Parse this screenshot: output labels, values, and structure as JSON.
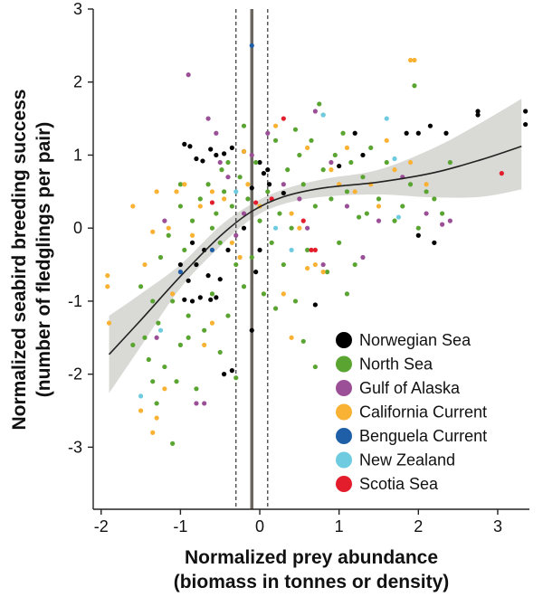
{
  "chart_data": {
    "type": "scatter",
    "xlabel": [
      "Normalized prey abundance",
      "(biomass in tonnes or density)"
    ],
    "ylabel": [
      "Normalized seabird breeding success",
      "(number of fledglings per pair)"
    ],
    "xlim": [
      -2.1,
      3.4
    ],
    "ylim": [
      -3.85,
      3
    ],
    "x_ticks": [
      -2,
      -1,
      0,
      1,
      2,
      3
    ],
    "x_tick_labels": [
      "-2",
      "-1",
      "0",
      "1",
      "2",
      "3"
    ],
    "y_ticks": [
      -3,
      -2,
      -1,
      0,
      1,
      2,
      3
    ],
    "y_tick_labels": [
      "-3",
      "-2",
      "-1",
      "0",
      "1",
      "2",
      "3"
    ],
    "threshold_line": -0.1,
    "threshold_ci": [
      -0.3,
      0.1
    ],
    "legend": {
      "placement": "bottom-right",
      "entries": [
        {
          "label": "Norwegian Sea",
          "color": "#000000"
        },
        {
          "label": "North Sea",
          "color": "#5aa532"
        },
        {
          "label": "Gulf of Alaska",
          "color": "#9b4f96"
        },
        {
          "label": "California Current",
          "color": "#f9b233"
        },
        {
          "label": "Benguela Current",
          "color": "#1f5fa8"
        },
        {
          "label": "New Zealand",
          "color": "#6ecbe0"
        },
        {
          "label": "Scotia Sea",
          "color": "#e31d2b"
        }
      ]
    },
    "fit": {
      "x": [
        -1.9,
        -1.5,
        -1.0,
        -0.5,
        -0.1,
        0.3,
        0.8,
        1.5,
        2.2,
        2.8,
        3.3
      ],
      "y": [
        -1.73,
        -1.26,
        -0.66,
        -0.11,
        0.23,
        0.43,
        0.55,
        0.63,
        0.76,
        0.94,
        1.12
      ],
      "ci_upper": [
        -1.2,
        -0.9,
        -0.5,
        0.03,
        0.33,
        0.53,
        0.67,
        0.8,
        1.1,
        1.45,
        1.77
      ],
      "ci_lower": [
        -2.26,
        -1.62,
        -0.82,
        -0.25,
        0.13,
        0.33,
        0.43,
        0.46,
        0.42,
        0.43,
        0.53
      ]
    },
    "fit_color": "#222222",
    "ci_color": "#d9d9d6",
    "series": [
      {
        "name": "Norwegian Sea",
        "color": "#000000",
        "points": [
          [
            -0.95,
            1.15
          ],
          [
            -0.88,
            1.12
          ],
          [
            -0.8,
            0.95
          ],
          [
            -0.72,
            0.92
          ],
          [
            -0.62,
            1.08
          ],
          [
            -0.55,
            1.0
          ],
          [
            -0.45,
            1.02
          ],
          [
            -0.35,
            1.1
          ],
          [
            -0.2,
            1.05
          ],
          [
            0.0,
            0.9
          ],
          [
            0.05,
            0.75
          ],
          [
            0.1,
            0.8
          ],
          [
            -0.1,
            0.55
          ],
          [
            0.12,
            0.6
          ],
          [
            0.3,
            0.48
          ],
          [
            -0.95,
            -0.98
          ],
          [
            -0.85,
            -1.0
          ],
          [
            -0.75,
            -0.95
          ],
          [
            -0.62,
            -0.98
          ],
          [
            -0.55,
            -0.95
          ],
          [
            -0.5,
            -0.7
          ],
          [
            -0.65,
            -0.65
          ],
          [
            -0.8,
            -0.5
          ],
          [
            -0.9,
            -0.72
          ],
          [
            -1.0,
            -0.5
          ],
          [
            -0.85,
            -0.2
          ],
          [
            -0.7,
            -0.3
          ],
          [
            -0.4,
            -0.3
          ],
          [
            -0.2,
            0.0
          ],
          [
            0.0,
            -0.3
          ],
          [
            -0.05,
            -0.6
          ],
          [
            -0.35,
            -1.95
          ],
          [
            -0.45,
            -2.0
          ],
          [
            -0.1,
            -1.4
          ],
          [
            0.7,
            -1.05
          ],
          [
            1.0,
            0.85
          ],
          [
            1.2,
            1.3
          ],
          [
            1.3,
            1.0
          ],
          [
            2.0,
            1.3
          ],
          [
            2.15,
            1.4
          ],
          [
            2.35,
            1.3
          ],
          [
            2.75,
            1.55
          ],
          [
            2.75,
            1.6
          ],
          [
            3.35,
            1.6
          ],
          [
            3.35,
            1.42
          ],
          [
            2.0,
            -0.1
          ],
          [
            2.2,
            -0.2
          ],
          [
            1.85,
            1.3
          ]
        ]
      },
      {
        "name": "North Sea",
        "color": "#5aa532",
        "points": [
          [
            -1.5,
            -0.8
          ],
          [
            -1.45,
            -1.5
          ],
          [
            -1.4,
            -1.8
          ],
          [
            -1.35,
            -2.1
          ],
          [
            -1.3,
            -2.4
          ],
          [
            -1.28,
            -1.3
          ],
          [
            -1.25,
            -0.4
          ],
          [
            -1.2,
            -1.9
          ],
          [
            -1.15,
            -0.1
          ],
          [
            -1.1,
            -2.95
          ],
          [
            -1.1,
            -1.0
          ],
          [
            -1.05,
            -2.1
          ],
          [
            -1.0,
            0.3
          ],
          [
            -1.0,
            -1.6
          ],
          [
            -0.95,
            -0.3
          ],
          [
            -0.9,
            -1.2
          ],
          [
            -0.85,
            0.1
          ],
          [
            -0.8,
            -2.2
          ],
          [
            -0.75,
            0.4
          ],
          [
            -0.7,
            -1.4
          ],
          [
            -0.65,
            0.6
          ],
          [
            -0.6,
            -0.9
          ],
          [
            -0.55,
            0.2
          ],
          [
            -0.5,
            -1.7
          ],
          [
            -0.48,
            0.8
          ],
          [
            -0.45,
            0.5
          ],
          [
            -0.4,
            -1.2
          ],
          [
            -0.35,
            0.3
          ],
          [
            -0.3,
            -0.5
          ],
          [
            -0.25,
            0.7
          ],
          [
            -0.2,
            -0.8
          ],
          [
            -0.15,
            0.4
          ],
          [
            -0.1,
            -0.4
          ],
          [
            -0.05,
            0.9
          ],
          [
            0.0,
            0.1
          ],
          [
            0.05,
            -0.9
          ],
          [
            0.1,
            0.5
          ],
          [
            0.15,
            -0.2
          ],
          [
            0.2,
            1.2
          ],
          [
            0.25,
            0.2
          ],
          [
            0.3,
            -0.5
          ],
          [
            0.35,
            0.8
          ],
          [
            0.4,
            0.0
          ],
          [
            0.45,
            -1.0
          ],
          [
            0.5,
            1.0
          ],
          [
            0.55,
            0.6
          ],
          [
            0.6,
            -0.3
          ],
          [
            0.65,
            1.2
          ],
          [
            0.7,
            0.3
          ],
          [
            0.75,
            1.7
          ],
          [
            0.8,
            0.8
          ],
          [
            0.85,
            -0.6
          ],
          [
            0.9,
            0.4
          ],
          [
            0.95,
            1.0
          ],
          [
            1.0,
            -0.2
          ],
          [
            1.05,
            1.3
          ],
          [
            1.1,
            0.5
          ],
          [
            1.15,
            0.9
          ],
          [
            1.2,
            -0.5
          ],
          [
            1.3,
            0.7
          ],
          [
            1.35,
            0.2
          ],
          [
            1.4,
            1.1
          ],
          [
            1.5,
            0.4
          ],
          [
            1.6,
            0.9
          ],
          [
            1.7,
            0.1
          ],
          [
            1.8,
            0.3
          ],
          [
            1.9,
            0.6
          ],
          [
            2.0,
            0.0
          ],
          [
            2.1,
            0.5
          ],
          [
            2.2,
            0.4
          ],
          [
            2.3,
            0.2
          ],
          [
            2.4,
            0.9
          ],
          [
            1.95,
            1.95
          ],
          [
            -1.6,
            -1.6
          ],
          [
            -0.3,
            -2.05
          ],
          [
            0.55,
            -1.55
          ],
          [
            0.7,
            -1.9
          ],
          [
            1.1,
            -0.9
          ],
          [
            -1.0,
            0.6
          ],
          [
            -0.6,
            0.0
          ],
          [
            0.0,
            0.3
          ],
          [
            0.2,
            -1.1
          ],
          [
            -0.2,
            1.4
          ],
          [
            0.45,
            1.35
          ],
          [
            0.8,
            1.55
          ],
          [
            1.25,
            0.15
          ],
          [
            -1.35,
            -1.0
          ],
          [
            -0.9,
            -1.5
          ],
          [
            -0.5,
            -0.2
          ],
          [
            -0.4,
            0.9
          ]
        ]
      },
      {
        "name": "Gulf of Alaska",
        "color": "#9b4f96",
        "points": [
          [
            -0.9,
            2.1
          ],
          [
            -0.8,
            -2.4
          ],
          [
            -0.7,
            -2.4
          ],
          [
            -0.65,
            1.5
          ],
          [
            -0.55,
            1.3
          ],
          [
            -0.5,
            0.9
          ],
          [
            -0.4,
            0.7
          ],
          [
            -0.3,
            -0.1
          ],
          [
            -0.2,
            0.2
          ],
          [
            -0.1,
            1.0
          ],
          [
            0.1,
            1.3
          ],
          [
            0.3,
            0.6
          ],
          [
            0.5,
            0.4
          ],
          [
            0.7,
            1.6
          ],
          [
            0.9,
            0.9
          ],
          [
            1.1,
            0.3
          ],
          [
            1.3,
            -0.4
          ],
          [
            1.5,
            0.1
          ],
          [
            1.8,
            0.7
          ],
          [
            2.1,
            0.2
          ],
          [
            2.3,
            0.05
          ],
          [
            2.4,
            0.1
          ],
          [
            -1.2,
            0.1
          ],
          [
            -1.3,
            -1.5
          ],
          [
            0.6,
            0.0
          ],
          [
            0.8,
            -0.5
          ]
        ]
      },
      {
        "name": "California Current",
        "color": "#f9b233",
        "points": [
          [
            -1.92,
            -0.65
          ],
          [
            -1.92,
            -0.8
          ],
          [
            -1.9,
            -1.3
          ],
          [
            -1.6,
            0.3
          ],
          [
            -1.5,
            -2.5
          ],
          [
            -1.45,
            -0.5
          ],
          [
            -1.35,
            -0.05
          ],
          [
            -1.3,
            0.5
          ],
          [
            -1.2,
            -2.2
          ],
          [
            -1.15,
            0.0
          ],
          [
            -1.1,
            -0.9
          ],
          [
            -1.05,
            0.5
          ],
          [
            -0.95,
            0.6
          ],
          [
            -0.85,
            -0.1
          ],
          [
            -0.75,
            0.3
          ],
          [
            -0.7,
            -1.6
          ],
          [
            -0.6,
            0.5
          ],
          [
            -0.45,
            0.4
          ],
          [
            -0.35,
            -0.2
          ],
          [
            -0.25,
            -0.4
          ],
          [
            -0.15,
            0.6
          ],
          [
            0.0,
            0.3
          ],
          [
            0.2,
            1.4
          ],
          [
            0.3,
            -0.9
          ],
          [
            0.4,
            0.2
          ],
          [
            0.5,
            0.0
          ],
          [
            0.6,
            1.1
          ],
          [
            0.7,
            -0.5
          ],
          [
            0.8,
            -0.6
          ],
          [
            0.9,
            0.8
          ],
          [
            1.0,
            0.6
          ],
          [
            1.1,
            1.1
          ],
          [
            1.2,
            0.5
          ],
          [
            1.4,
            0.6
          ],
          [
            1.5,
            0.3
          ],
          [
            1.6,
            1.2
          ],
          [
            1.7,
            0.8
          ],
          [
            1.9,
            0.9
          ],
          [
            1.9,
            2.3
          ],
          [
            1.95,
            2.3
          ],
          [
            2.1,
            0.6
          ],
          [
            -1.35,
            -2.8
          ],
          [
            -1.3,
            -2.6
          ],
          [
            0.6,
            -0.55
          ],
          [
            0.4,
            -1.5
          ],
          [
            -0.2,
            1.05
          ],
          [
            -0.6,
            -1.3
          ]
        ]
      },
      {
        "name": "Benguela Current",
        "color": "#1f5fa8",
        "points": [
          [
            -0.1,
            2.5
          ],
          [
            -1.0,
            -0.6
          ],
          [
            -0.6,
            -0.3
          ]
        ]
      },
      {
        "name": "New Zealand",
        "color": "#6ecbe0",
        "points": [
          [
            -1.5,
            -2.3
          ],
          [
            -1.25,
            -1.4
          ],
          [
            0.4,
            -0.3
          ],
          [
            0.8,
            1.55
          ],
          [
            1.6,
            1.5
          ],
          [
            1.7,
            0.95
          ],
          [
            1.75,
            0.15
          ],
          [
            -0.3,
            0.5
          ],
          [
            0.2,
            0.0
          ]
        ]
      },
      {
        "name": "Scotia Sea",
        "color": "#e31d2b",
        "points": [
          [
            -0.6,
            0.35
          ],
          [
            0.3,
            1.5
          ],
          [
            0.55,
            0.1
          ],
          [
            0.7,
            -0.3
          ],
          [
            0.65,
            -0.3
          ],
          [
            3.05,
            0.75
          ],
          [
            0.15,
            0.4
          ],
          [
            -0.05,
            0.35
          ]
        ]
      }
    ]
  }
}
